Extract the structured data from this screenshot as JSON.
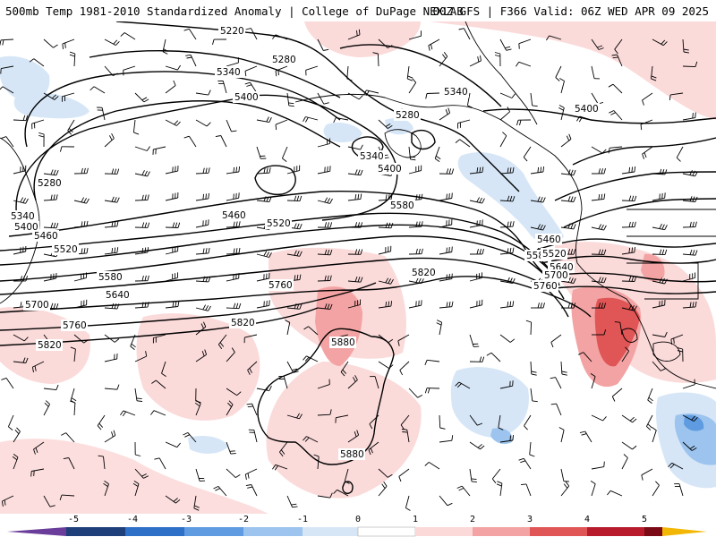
{
  "header": {
    "title_left": "500mb Temp 1981-2010 Standardized Anomaly | College of DuPage NEXLAB",
    "title_right": "00Z GFS | F366 Valid: 06Z WED APR 09 2025"
  },
  "colorbar": {
    "ticks": [
      "-5",
      "-4",
      "-3",
      "-2",
      "-1",
      "0",
      "1",
      "2",
      "3",
      "4",
      "5"
    ],
    "colors": [
      "#6a3d9a",
      "#1f3f7a",
      "#2e6fc7",
      "#5e9be0",
      "#9cc4ee",
      "#d6e6f7",
      "#ffffff",
      "#fbd9d9",
      "#f3a3a3",
      "#e05555",
      "#b81c2c",
      "#7a0a16",
      "#f2b705"
    ]
  },
  "contour_labels": [
    "5220",
    "5280",
    "5340",
    "5340",
    "5400",
    "5400",
    "5280",
    "5340",
    "5400",
    "5280",
    "5340",
    "5400",
    "5460",
    "5460",
    "5520",
    "5520",
    "5580",
    "5580",
    "5580",
    "5640",
    "5640",
    "5700",
    "5700",
    "5760",
    "5760",
    "5760",
    "5820",
    "5820",
    "5820",
    "5880",
    "5880",
    "5460",
    "5520"
  ]
}
